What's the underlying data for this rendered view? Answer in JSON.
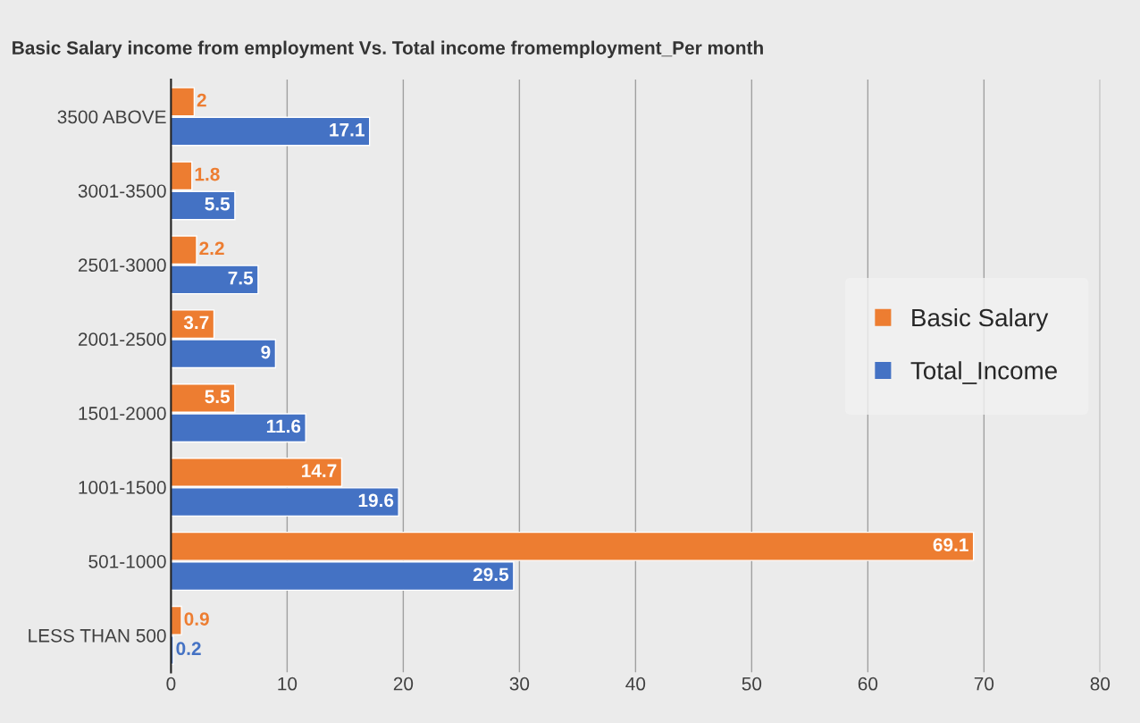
{
  "chart_data": {
    "type": "bar",
    "orientation": "horizontal",
    "title": "Basic Salary income from employment Vs. Total income fromemployment_Per month",
    "categories": [
      "3500 ABOVE",
      "3001-3500",
      "2501-3000",
      "2001-2500",
      "1501-2000",
      "1001-1500",
      "501-1000",
      "LESS THAN 500"
    ],
    "series": [
      {
        "name": "Basic Salary",
        "color": "#ed7d31",
        "values": [
          2,
          1.8,
          2.2,
          3.7,
          5.5,
          14.7,
          69.1,
          0.9
        ]
      },
      {
        "name": "Total_Income",
        "color": "#4472c4",
        "values": [
          17.1,
          5.5,
          7.5,
          9,
          11.6,
          19.6,
          29.5,
          0.2
        ]
      }
    ],
    "xlim": [
      0,
      80
    ],
    "xticks": [
      0,
      10,
      20,
      30,
      40,
      50,
      60,
      70,
      80
    ],
    "grid": "x",
    "legend": "right",
    "data_labels": true
  }
}
